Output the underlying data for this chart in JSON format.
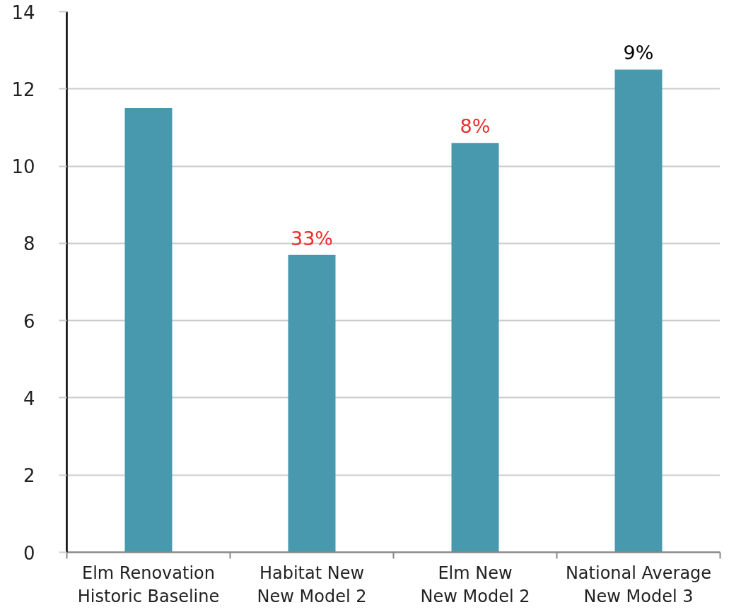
{
  "chart_data": {
    "type": "bar",
    "categories": [
      "Elm Renovation Historic Baseline",
      "Habitat New New Model 2",
      "Elm New New Model 2",
      "National Average New Model 3"
    ],
    "values": [
      11.5,
      7.7,
      10.6,
      12.5
    ],
    "color": "#4898ae",
    "ylim": [
      0,
      14
    ],
    "yticks": [
      0,
      2,
      4,
      6,
      8,
      10,
      12,
      14
    ],
    "grid": "y",
    "annotations": [
      {
        "text": "33%",
        "x": "Habitat New New Model 2",
        "y": 7.7
      },
      {
        "text": "8%",
        "x": "Elm New New Model 2",
        "y": 10.6
      },
      {
        "text": "9%",
        "x": "National Average New Model 3",
        "y": 12.5
      }
    ]
  }
}
